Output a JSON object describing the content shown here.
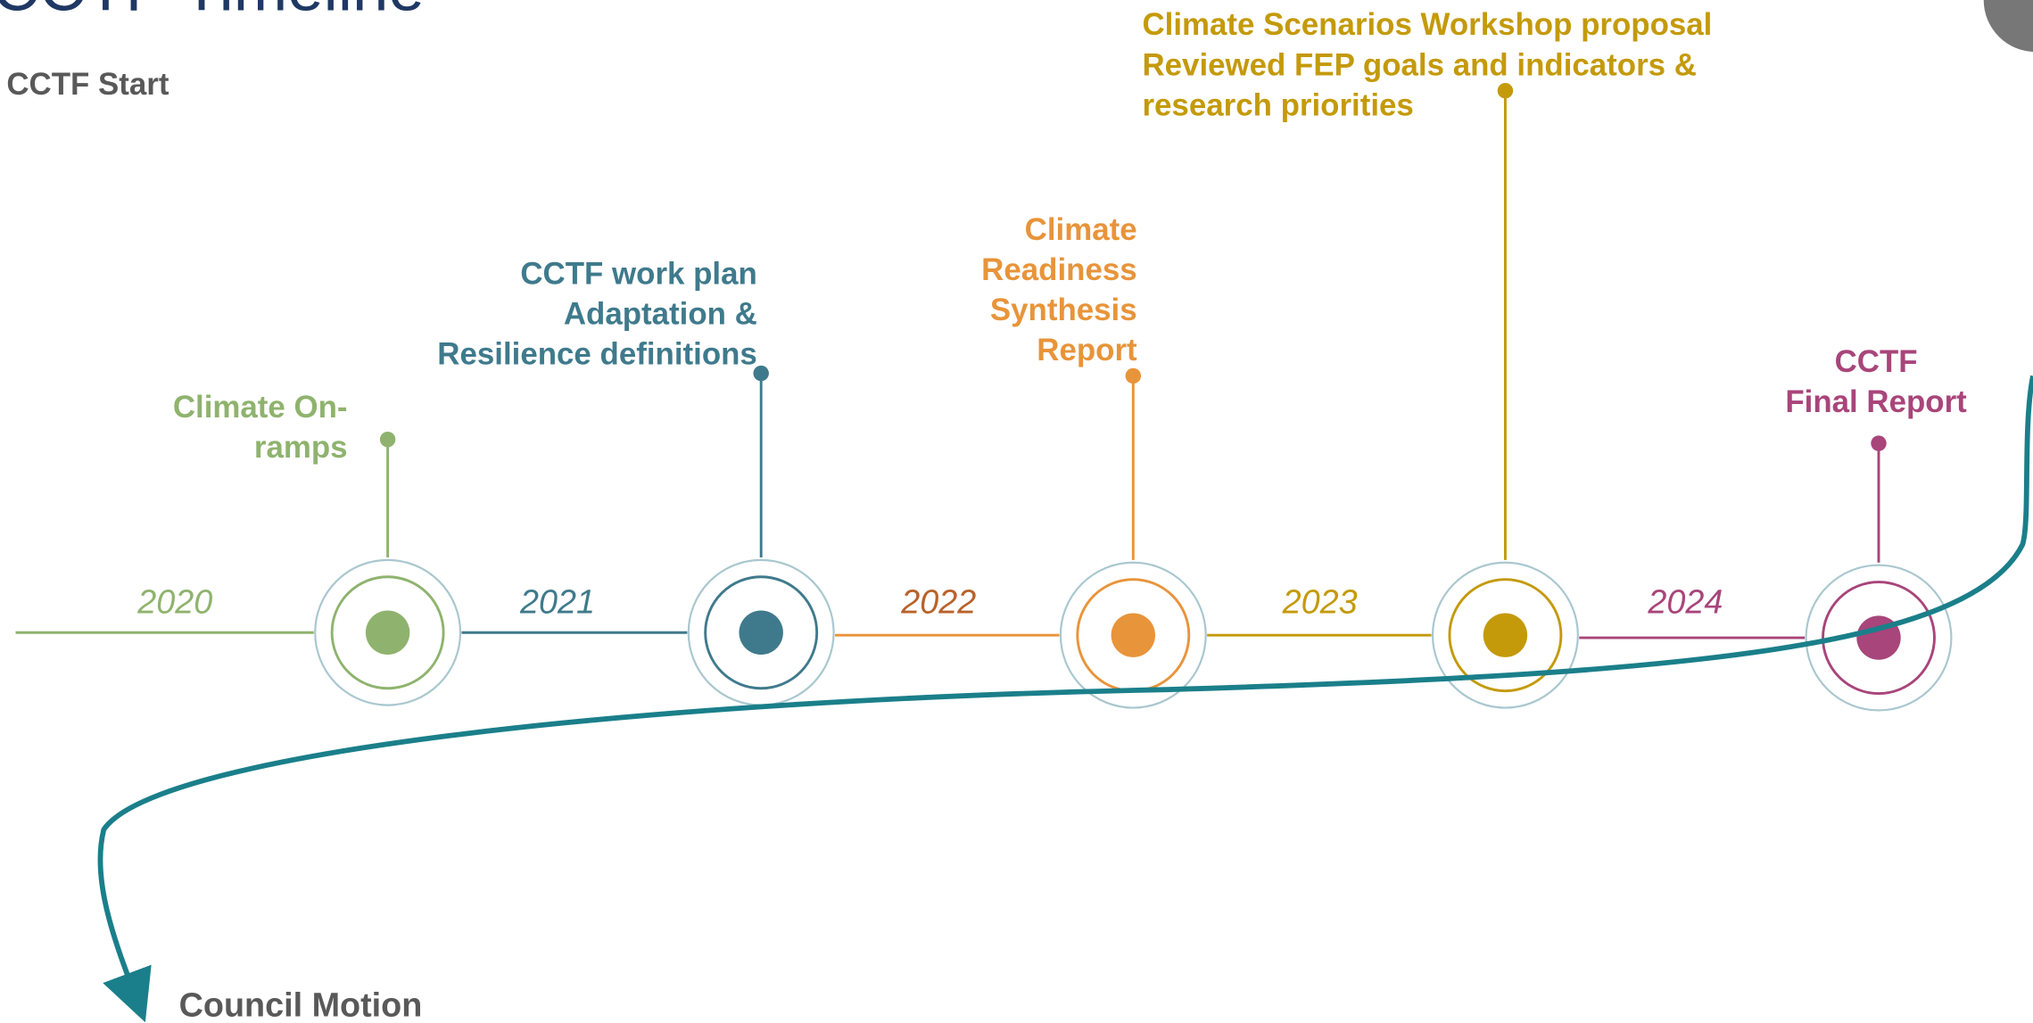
{
  "title": "CCTF Timeline",
  "start_label": "CCTF Start",
  "end_label": "Council Motion",
  "milestones": [
    {
      "year": "2020",
      "lines": [
        "Climate On-",
        "ramps"
      ],
      "color": "#8fb36e",
      "year_color": "#8fb36e"
    },
    {
      "year": "2021",
      "lines": [
        "CCTF work plan",
        "Adaptation &",
        "Resilience definitions"
      ],
      "color": "#3f7a8c",
      "year_color": "#3f7a8c"
    },
    {
      "year": "2022",
      "lines": [
        "Climate",
        "Readiness",
        "Synthesis",
        "Report"
      ],
      "color": "#e8943a",
      "year_color": "#b8622a"
    },
    {
      "year": "2023",
      "lines": [
        "Climate Scenarios Workshop proposal",
        "Reviewed FEP goals and indicators &",
        "research priorities"
      ],
      "color": "#c49a0a",
      "year_color": "#c49a0a"
    },
    {
      "year": "2024",
      "lines": [
        "CCTF",
        "Final Report"
      ],
      "color": "#a8457a",
      "year_color": "#a8457a"
    }
  ]
}
